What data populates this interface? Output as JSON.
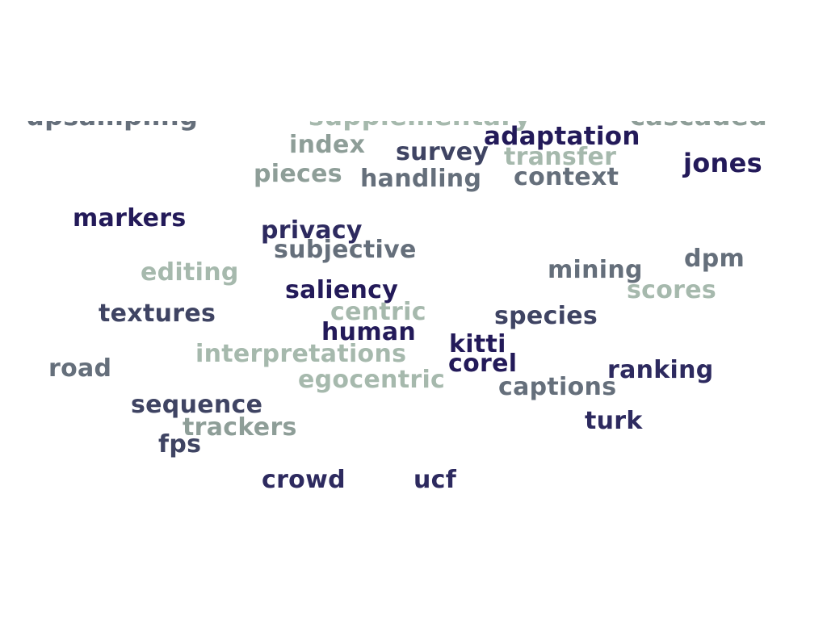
{
  "palette": {
    "navy": "#231a59",
    "indigo": "#2d2a5f",
    "slate": "#3f4463",
    "grey": "#656f7b",
    "sage": "#8e9e98",
    "mint": "#a6b9ad"
  },
  "words": [
    "upsampling",
    "supplementary",
    "cascaded",
    "adaptation",
    "index",
    "survey",
    "transfer",
    "jones",
    "pieces",
    "handling",
    "context",
    "markers",
    "privacy",
    "subjective",
    "dpm",
    "editing",
    "mining",
    "saliency",
    "scores",
    "textures",
    "centric",
    "species",
    "human",
    "kitti",
    "interpretations",
    "corel",
    "road",
    "ranking",
    "egocentric",
    "captions",
    "sequence",
    "trackers",
    "turk",
    "fps",
    "crowd",
    "ucf"
  ]
}
